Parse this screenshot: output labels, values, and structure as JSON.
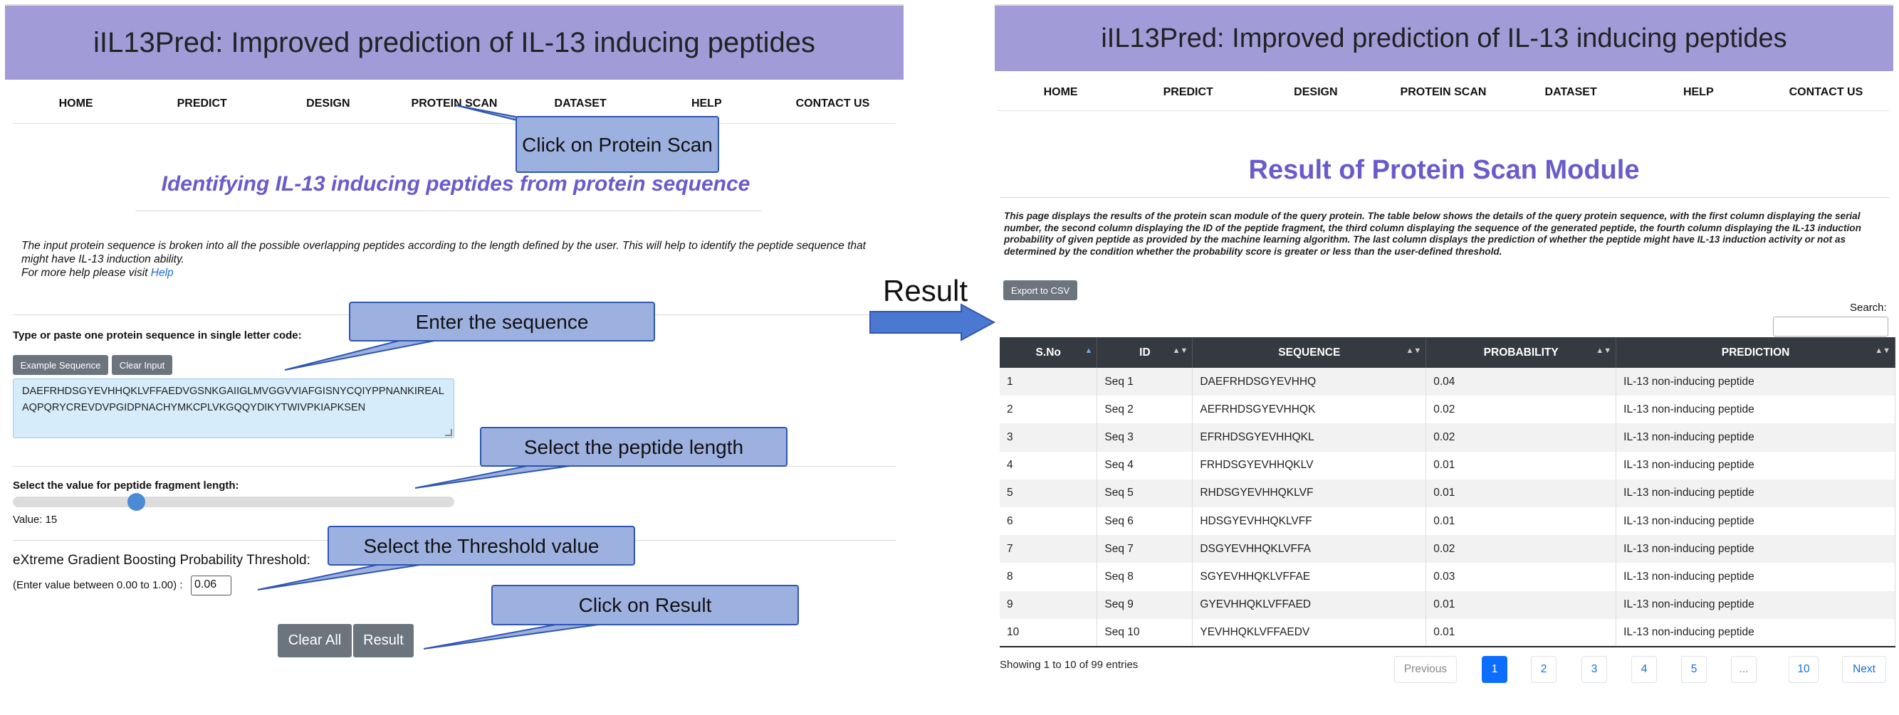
{
  "left": {
    "banner": "iIL13Pred: Improved prediction of IL-13 inducing peptides",
    "nav": [
      "HOME",
      "PREDICT",
      "DESIGN",
      "PROTEIN SCAN",
      "DATASET",
      "HELP",
      "CONTACT US"
    ],
    "subtitle": "Identifying IL-13 inducing peptides from protein sequence",
    "description": "The input protein sequence is broken into all the possible overlapping peptides according to the length defined by the user. This will help to identify the peptide sequence that might have IL-13 induction ability.",
    "help_prefix": "For more help please visit ",
    "help_link": "Help",
    "sequence_label": "Type or paste one protein sequence in single letter code:",
    "example_button": "Example Sequence",
    "clear_input_button": "Clear Input",
    "sequence_line1": "DAEFRHDSGYEVHHQKLVFFAEDVGSNKGAIIGLMVGGVVIAFGISNYCQIYPPNANKIREAL",
    "sequence_line2": "AQPQRYCREVDVPGIDPNACHYMKCPLVKGQQYDIKYTWIVPKIAPKSEN",
    "length_label": "Select the value for peptide fragment length:",
    "length_value": "Value: 15",
    "slider_fraction": 0.27,
    "threshold_heading": "eXtreme Gradient Boosting Probability Threshold:",
    "threshold_hint": "(Enter value between 0.00 to 1.00) :",
    "threshold_value": "0.06",
    "clear_all_button": "Clear All",
    "result_button": "Result"
  },
  "callouts": {
    "protein_scan": "Click on Protein Scan",
    "sequence": "Enter the sequence",
    "length": "Select the peptide length",
    "threshold": "Select the Threshold value",
    "result": "Click on Result"
  },
  "arrow_label": "Result",
  "right": {
    "banner": "iIL13Pred: Improved prediction of IL-13 inducing peptides",
    "nav": [
      "HOME",
      "PREDICT",
      "DESIGN",
      "PROTEIN SCAN",
      "DATASET",
      "HELP",
      "CONTACT US"
    ],
    "title": "Result of Protein Scan Module",
    "description": "This page displays the results of the protein scan module of the query protein. The table below shows the details of the query protein sequence, with the first column displaying the serial number, the second column displaying the ID of the peptide fragment, the third column displaying the sequence of the generated peptide, the fourth column displaying the IL-13 induction probability of given peptide as provided by the machine learning algorithm. The last column displays the prediction of whether the peptide might have IL-13 induction activity or not as determined by the condition whether the probability score is greater or less than the user-defined threshold.",
    "export_button": "Export to CSV",
    "search_label": "Search:",
    "columns": [
      "S.No",
      "ID",
      "SEQUENCE",
      "PROBABILITY",
      "PREDICTION"
    ],
    "rows": [
      [
        "1",
        "Seq 1",
        "DAEFRHDSGYEVHHQ",
        "0.04",
        "IL-13 non-inducing peptide"
      ],
      [
        "2",
        "Seq 2",
        "AEFRHDSGYEVHHQK",
        "0.02",
        "IL-13 non-inducing peptide"
      ],
      [
        "3",
        "Seq 3",
        "EFRHDSGYEVHHQKL",
        "0.02",
        "IL-13 non-inducing peptide"
      ],
      [
        "4",
        "Seq 4",
        "FRHDSGYEVHHQKLV",
        "0.01",
        "IL-13 non-inducing peptide"
      ],
      [
        "5",
        "Seq 5",
        "RHDSGYEVHHQKLVF",
        "0.01",
        "IL-13 non-inducing peptide"
      ],
      [
        "6",
        "Seq 6",
        "HDSGYEVHHQKLVFF",
        "0.01",
        "IL-13 non-inducing peptide"
      ],
      [
        "7",
        "Seq 7",
        "DSGYEVHHQKLVFFA",
        "0.02",
        "IL-13 non-inducing peptide"
      ],
      [
        "8",
        "Seq 8",
        "SGYEVHHQKLVFFAE",
        "0.03",
        "IL-13 non-inducing peptide"
      ],
      [
        "9",
        "Seq 9",
        "GYEVHHQKLVFFAED",
        "0.01",
        "IL-13 non-inducing peptide"
      ],
      [
        "10",
        "Seq 10",
        "YEVHHQKLVFFAEDV",
        "0.01",
        "IL-13 non-inducing peptide"
      ]
    ],
    "showing": "Showing 1 to 10 of 99 entries",
    "pagination": {
      "previous": "Previous",
      "pages": [
        "1",
        "2",
        "3",
        "4",
        "5",
        "...",
        "10"
      ],
      "next": "Next",
      "active": "1"
    }
  },
  "colors": {
    "banner": "#a19bd8",
    "title_purple": "#6a5acd",
    "callout_fill": "#9db1e0",
    "callout_border": "#2f56b3",
    "table_header": "#343a40",
    "active_page": "#0d6efd"
  }
}
